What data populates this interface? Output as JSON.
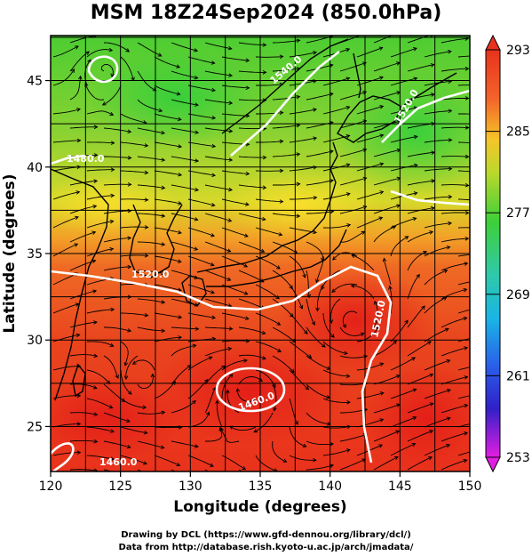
{
  "title": "MSM 18Z24Sep2024 (850.0hPa)",
  "x_axis": {
    "label": "Longitude (degrees)",
    "ticks": [
      "120",
      "125",
      "130",
      "135",
      "140",
      "145",
      "150"
    ],
    "range": [
      120,
      150
    ]
  },
  "y_axis": {
    "label": "Latitude (degrees)",
    "ticks": [
      "25",
      "30",
      "35",
      "40",
      "45"
    ],
    "range": [
      22.4,
      47.6
    ]
  },
  "colorbar": {
    "ticks": [
      "293",
      "285",
      "277",
      "269",
      "261",
      "253"
    ],
    "range": [
      253,
      293
    ]
  },
  "contour_labels": [
    "1520.0",
    "1520.0",
    "1480.0",
    "1460.0",
    "1540.0",
    "1520.0",
    "1460.0"
  ],
  "credit_line1": "Drawing by DCL (https://www.gfd-dennou.org/library/dcl/)",
  "credit_line2": "Data from http://database.rish.kyoto-u.ac.jp/arch/jmadata/",
  "colors": {
    "warm": "#e8321e",
    "orange": "#f57a28",
    "yellow": "#e6d92a",
    "green": "#5ad232",
    "contour": "#ffffff"
  }
}
